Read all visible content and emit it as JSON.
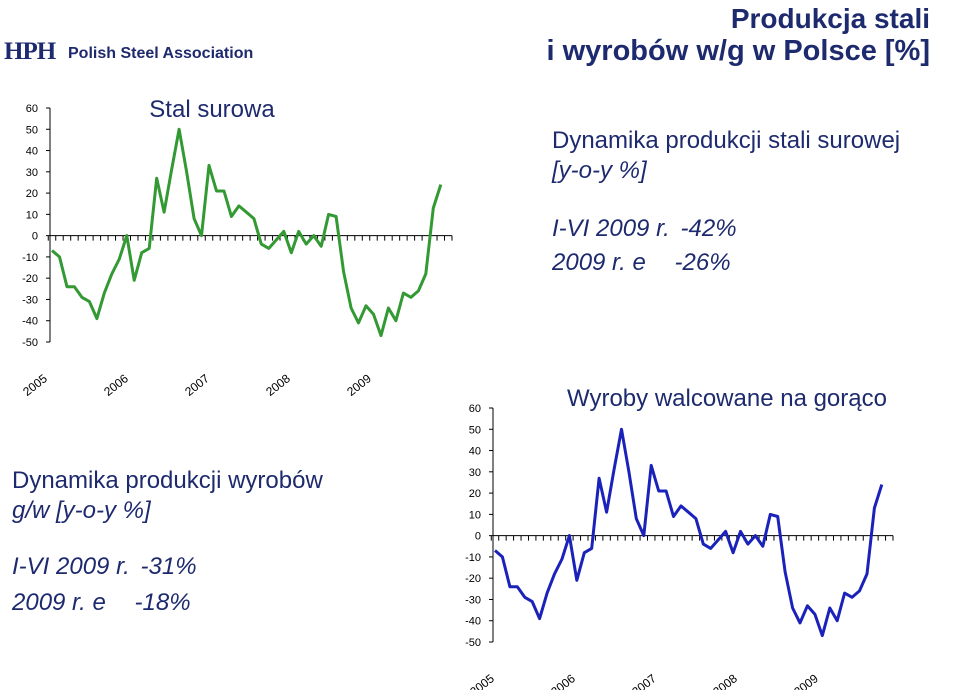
{
  "header": {
    "logo_mark": "HPH",
    "logo_text": "Polish Steel Association",
    "title_line1": "Produkcja stali",
    "title_line2": "i wyrobów w/g w Polsce [%]"
  },
  "crude_info": {
    "heading_line1": "Dynamika produkcji stali surowej",
    "heading_line2": "[y-o-y %]",
    "row1_label": "I-VI 2009 r.",
    "row1_value": "-42%",
    "row2_label": "2009 r. e",
    "row2_value": "-26%"
  },
  "rolled_info": {
    "heading_line1": "Dynamika produkcji wyrobów",
    "heading_line2": "g/w [y-o-y %]",
    "row1_label": "I-VI 2009 r.",
    "row1_value": "-31%",
    "row2_label": "2009 r. e",
    "row2_value": "-18%"
  },
  "chart_data": [
    {
      "type": "line",
      "title": "Stal surowa",
      "ylim": [
        -50,
        60
      ],
      "yticks": [
        60,
        50,
        40,
        30,
        20,
        10,
        0,
        -10,
        -20,
        -30,
        -40,
        -50
      ],
      "x_tick_labels": [
        "2005",
        "2006",
        "2007",
        "2008",
        "2009"
      ],
      "color": "#339933",
      "series": [
        {
          "values": [
            -7,
            -10,
            -24,
            -24,
            -29,
            -31,
            -39,
            -27,
            -18,
            -11,
            0,
            -21,
            -8,
            -6,
            27,
            11,
            31,
            50,
            30,
            8,
            0,
            33,
            21,
            21,
            9,
            14,
            11,
            8,
            -4,
            -6,
            -2,
            2,
            -8,
            2,
            -4,
            0,
            -5,
            10,
            9,
            -17,
            -34,
            -41,
            -33,
            -37,
            -47,
            -34,
            -40,
            -27,
            -29,
            -26,
            -18,
            13,
            24
          ]
        }
      ]
    },
    {
      "type": "line",
      "title": "Wyroby walcowane na gorąco",
      "ylim": [
        -50,
        60
      ],
      "yticks": [
        60,
        50,
        40,
        30,
        20,
        10,
        0,
        -10,
        -20,
        -30,
        -40,
        -50
      ],
      "x_tick_labels": [
        "2005",
        "2006",
        "2007",
        "2008",
        "2009"
      ],
      "color": "#1b22ba",
      "series": [
        {
          "values": [
            -7,
            -10,
            -24,
            -24,
            -29,
            -31,
            -39,
            -27,
            -18,
            -11,
            0,
            -21,
            -8,
            -6,
            27,
            11,
            31,
            50,
            30,
            8,
            0,
            33,
            21,
            21,
            9,
            14,
            11,
            8,
            -4,
            -6,
            -2,
            2,
            -8,
            2,
            -4,
            0,
            -5,
            10,
            9,
            -17,
            -34,
            -41,
            -33,
            -37,
            -47,
            -34,
            -40,
            -27,
            -29,
            -26,
            -18,
            13,
            24
          ]
        }
      ]
    }
  ]
}
